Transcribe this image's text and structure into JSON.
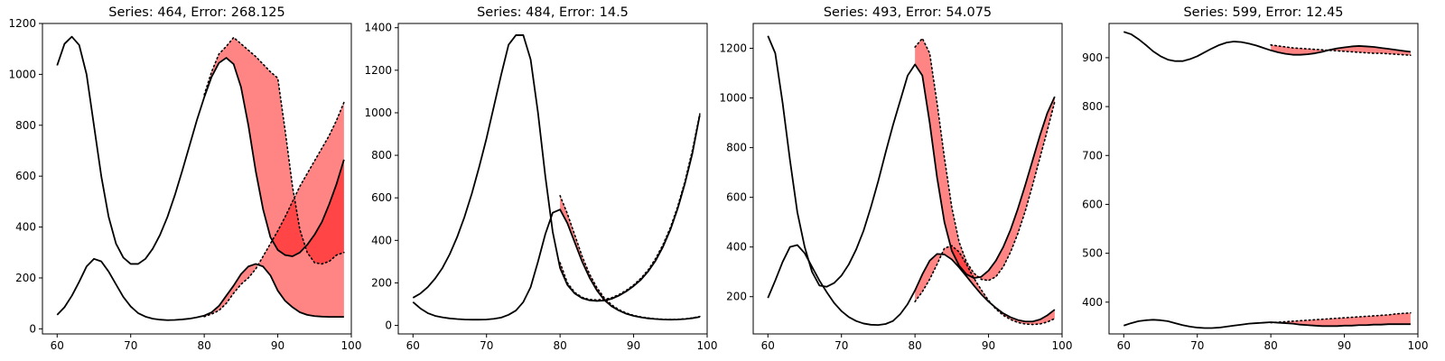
{
  "chart_data": [
    {
      "type": "line",
      "title": "Series: 464, Error: 268.125",
      "xlim": [
        58,
        100
      ],
      "ylim": [
        -20,
        1200
      ],
      "xticks": [
        60,
        70,
        80,
        90,
        100
      ],
      "yticks": [
        0,
        200,
        400,
        600,
        800,
        1000,
        1200
      ],
      "grid": false,
      "fill_color": "#ff0000",
      "fill_alpha": 0.48,
      "series": [
        {
          "x": [
            60,
            61,
            62,
            63,
            64,
            65,
            66,
            67,
            68,
            69,
            70,
            71,
            72,
            73,
            74,
            75,
            76,
            77,
            78,
            79,
            80,
            81,
            82,
            83,
            84,
            85,
            86,
            87,
            88,
            89,
            90,
            91,
            92,
            93,
            94,
            95,
            96,
            97,
            98,
            99
          ],
          "actual": [
            1035,
            1120,
            1148,
            1115,
            1000,
            800,
            600,
            440,
            335,
            280,
            255,
            255,
            275,
            315,
            370,
            440,
            525,
            620,
            720,
            820,
            910,
            990,
            1045,
            1065,
            1040,
            950,
            800,
            620,
            470,
            360,
            310,
            290,
            285,
            300,
            330,
            370,
            420,
            490,
            570,
            665
          ],
          "forecast_x": [
            80,
            81,
            82,
            83,
            84,
            85,
            86,
            87,
            88,
            89,
            90,
            91,
            92,
            93,
            94,
            95,
            96,
            97,
            98,
            99
          ],
          "predicted": [
            920,
            1010,
            1080,
            1110,
            1145,
            1120,
            1095,
            1070,
            1040,
            1010,
            985,
            780,
            560,
            390,
            300,
            260,
            255,
            265,
            290,
            300
          ]
        },
        {
          "x": [
            60,
            61,
            62,
            63,
            64,
            65,
            66,
            67,
            68,
            69,
            70,
            71,
            72,
            73,
            74,
            75,
            76,
            77,
            78,
            79,
            80,
            81,
            82,
            83,
            84,
            85,
            86,
            87,
            88,
            89,
            90,
            91,
            92,
            93,
            94,
            95,
            96,
            97,
            98,
            99
          ],
          "actual": [
            55,
            85,
            130,
            185,
            245,
            275,
            265,
            225,
            175,
            125,
            88,
            62,
            48,
            40,
            36,
            34,
            35,
            37,
            40,
            45,
            52,
            65,
            90,
            130,
            170,
            215,
            245,
            255,
            245,
            210,
            150,
            110,
            85,
            65,
            55,
            50,
            48,
            47,
            47,
            47
          ],
          "forecast_x": [
            80,
            81,
            82,
            83,
            84,
            85,
            86,
            87,
            88,
            89,
            90,
            91,
            92,
            93,
            94,
            95,
            96,
            97,
            98,
            99
          ],
          "predicted": [
            48,
            58,
            72,
            100,
            140,
            175,
            200,
            235,
            285,
            335,
            385,
            440,
            500,
            560,
            610,
            660,
            710,
            760,
            820,
            890
          ]
        }
      ]
    },
    {
      "type": "line",
      "title": "Series: 484, Error: 14.5",
      "xlim": [
        58,
        100
      ],
      "ylim": [
        -40,
        1420
      ],
      "xticks": [
        60,
        70,
        80,
        90,
        100
      ],
      "yticks": [
        0,
        200,
        400,
        600,
        800,
        1000,
        1200,
        1400
      ],
      "grid": false,
      "fill_color": "#ff0000",
      "fill_alpha": 0.48,
      "series": [
        {
          "x": [
            60,
            61,
            62,
            63,
            64,
            65,
            66,
            67,
            68,
            69,
            70,
            71,
            72,
            73,
            74,
            75,
            76,
            77,
            78,
            79,
            80,
            81,
            82,
            83,
            84,
            85,
            86,
            87,
            88,
            89,
            90,
            91,
            92,
            93,
            94,
            95,
            96,
            97,
            98,
            99
          ],
          "actual": [
            130,
            150,
            180,
            220,
            270,
            335,
            415,
            510,
            620,
            745,
            880,
            1030,
            1180,
            1320,
            1365,
            1365,
            1250,
            1000,
            700,
            440,
            270,
            190,
            150,
            128,
            118,
            115,
            117,
            125,
            140,
            160,
            185,
            215,
            255,
            305,
            370,
            450,
            550,
            670,
            810,
            990
          ],
          "forecast_x": [
            80,
            81,
            82,
            83,
            84,
            85,
            86,
            87,
            88,
            89,
            90,
            91,
            92,
            93,
            94,
            95,
            96,
            97,
            98,
            99
          ],
          "predicted": [
            295,
            200,
            155,
            132,
            122,
            120,
            122,
            130,
            145,
            165,
            190,
            222,
            262,
            315,
            380,
            460,
            560,
            680,
            825,
            995
          ]
        },
        {
          "x": [
            60,
            61,
            62,
            63,
            64,
            65,
            66,
            67,
            68,
            69,
            70,
            71,
            72,
            73,
            74,
            75,
            76,
            77,
            78,
            79,
            80,
            81,
            82,
            83,
            84,
            85,
            86,
            87,
            88,
            89,
            90,
            91,
            92,
            93,
            94,
            95,
            96,
            97,
            98,
            99
          ],
          "actual": [
            110,
            80,
            58,
            45,
            38,
            33,
            30,
            28,
            27,
            27,
            28,
            31,
            37,
            50,
            70,
            110,
            180,
            300,
            430,
            530,
            545,
            480,
            390,
            300,
            225,
            165,
            120,
            90,
            70,
            55,
            45,
            38,
            33,
            30,
            28,
            27,
            28,
            30,
            34,
            40
          ],
          "forecast_x": [
            80,
            81,
            82,
            83,
            84,
            85,
            86,
            87,
            88,
            89,
            90,
            91,
            92,
            93,
            94,
            95,
            96,
            97,
            98,
            99
          ],
          "predicted": [
            610,
            525,
            425,
            325,
            242,
            178,
            130,
            97,
            74,
            58,
            47,
            40,
            35,
            31,
            29,
            28,
            29,
            31,
            35,
            42
          ]
        }
      ]
    },
    {
      "type": "line",
      "title": "Series: 493, Error: 54.075",
      "xlim": [
        58,
        100
      ],
      "ylim": [
        50,
        1300
      ],
      "xticks": [
        60,
        70,
        80,
        90,
        100
      ],
      "yticks": [
        200,
        400,
        600,
        800,
        1000,
        1200
      ],
      "grid": false,
      "fill_color": "#ff0000",
      "fill_alpha": 0.48,
      "series": [
        {
          "x": [
            60,
            61,
            62,
            63,
            64,
            65,
            66,
            67,
            68,
            69,
            70,
            71,
            72,
            73,
            74,
            75,
            76,
            77,
            78,
            79,
            80,
            81,
            82,
            83,
            84,
            85,
            86,
            87,
            88,
            89,
            90,
            91,
            92,
            93,
            94,
            95,
            96,
            97,
            98,
            99
          ],
          "actual": [
            1250,
            1180,
            980,
            750,
            540,
            400,
            300,
            245,
            240,
            255,
            285,
            330,
            390,
            465,
            560,
            665,
            780,
            890,
            990,
            1090,
            1135,
            1090,
            900,
            680,
            500,
            385,
            325,
            290,
            275,
            280,
            305,
            345,
            400,
            470,
            555,
            650,
            750,
            850,
            940,
            1005
          ],
          "forecast_x": [
            80,
            81,
            82,
            83,
            84,
            85,
            86,
            87,
            88,
            89,
            90,
            91,
            92,
            93,
            94,
            95,
            96,
            97,
            98,
            99
          ],
          "predicted": [
            1205,
            1240,
            1180,
            980,
            760,
            560,
            420,
            340,
            295,
            270,
            265,
            280,
            320,
            380,
            455,
            545,
            650,
            760,
            870,
            985
          ]
        },
        {
          "x": [
            60,
            61,
            62,
            63,
            64,
            65,
            66,
            67,
            68,
            69,
            70,
            71,
            72,
            73,
            74,
            75,
            76,
            77,
            78,
            79,
            80,
            81,
            82,
            83,
            84,
            85,
            86,
            87,
            88,
            89,
            90,
            91,
            92,
            93,
            94,
            95,
            96,
            97,
            98,
            99
          ],
          "actual": [
            195,
            265,
            340,
            400,
            408,
            375,
            320,
            265,
            218,
            175,
            142,
            118,
            102,
            92,
            87,
            86,
            90,
            102,
            130,
            170,
            225,
            290,
            345,
            372,
            370,
            350,
            318,
            282,
            245,
            210,
            180,
            155,
            133,
            117,
            106,
            100,
            100,
            108,
            125,
            148
          ],
          "forecast_x": [
            80,
            81,
            82,
            83,
            84,
            85,
            86,
            87,
            88,
            89,
            90,
            91,
            92,
            93,
            94,
            95,
            96,
            97,
            98,
            99
          ],
          "predicted": [
            180,
            220,
            270,
            330,
            395,
            405,
            380,
            330,
            275,
            228,
            185,
            150,
            125,
            108,
            96,
            90,
            88,
            90,
            98,
            112
          ]
        }
      ]
    },
    {
      "type": "line",
      "title": "Series: 599, Error: 12.45",
      "xlim": [
        58,
        100
      ],
      "ylim": [
        335,
        970
      ],
      "xticks": [
        60,
        70,
        80,
        90,
        100
      ],
      "yticks": [
        400,
        500,
        600,
        700,
        800,
        900
      ],
      "grid": false,
      "fill_color": "#ff0000",
      "fill_alpha": 0.48,
      "series": [
        {
          "x": [
            60,
            61,
            62,
            63,
            64,
            65,
            66,
            67,
            68,
            69,
            70,
            71,
            72,
            73,
            74,
            75,
            76,
            77,
            78,
            79,
            80,
            81,
            82,
            83,
            84,
            85,
            86,
            87,
            88,
            89,
            90,
            91,
            92,
            93,
            94,
            95,
            96,
            97,
            98,
            99
          ],
          "actual": [
            953,
            948,
            938,
            926,
            913,
            903,
            896,
            893,
            893,
            897,
            903,
            911,
            919,
            926,
            931,
            933,
            932,
            929,
            925,
            920,
            915,
            911,
            908,
            906,
            906,
            907,
            909,
            912,
            916,
            919,
            921,
            923,
            924,
            923,
            922,
            920,
            918,
            916,
            914,
            912
          ],
          "forecast_x": [
            80,
            81,
            82,
            83,
            84,
            85,
            86,
            87,
            88,
            89,
            90,
            91,
            92,
            93,
            94,
            95,
            96,
            97,
            98,
            99
          ],
          "predicted": [
            926,
            924,
            922,
            920,
            919,
            918,
            917,
            916,
            915,
            914,
            913,
            912,
            911,
            910,
            909,
            909,
            908,
            907,
            906,
            905
          ]
        },
        {
          "x": [
            60,
            61,
            62,
            63,
            64,
            65,
            66,
            67,
            68,
            69,
            70,
            71,
            72,
            73,
            74,
            75,
            76,
            77,
            78,
            79,
            80,
            81,
            82,
            83,
            84,
            85,
            86,
            87,
            88,
            89,
            90,
            91,
            92,
            93,
            94,
            95,
            96,
            97,
            98,
            99
          ],
          "actual": [
            352,
            357,
            361,
            363,
            364,
            363,
            361,
            357,
            353,
            350,
            348,
            347,
            347,
            348,
            350,
            352,
            354,
            356,
            357,
            358,
            359,
            358,
            357,
            356,
            354,
            353,
            352,
            351,
            351,
            351,
            352,
            352,
            353,
            353,
            354,
            354,
            355,
            355,
            355,
            355
          ],
          "forecast_x": [
            80,
            81,
            82,
            83,
            84,
            85,
            86,
            87,
            88,
            89,
            90,
            91,
            92,
            93,
            94,
            95,
            96,
            97,
            98,
            99
          ],
          "predicted": [
            358,
            359,
            360,
            361,
            362,
            363,
            364,
            365,
            366,
            367,
            368,
            369,
            370,
            371,
            372,
            373,
            374,
            376,
            377,
            378
          ]
        }
      ]
    }
  ]
}
